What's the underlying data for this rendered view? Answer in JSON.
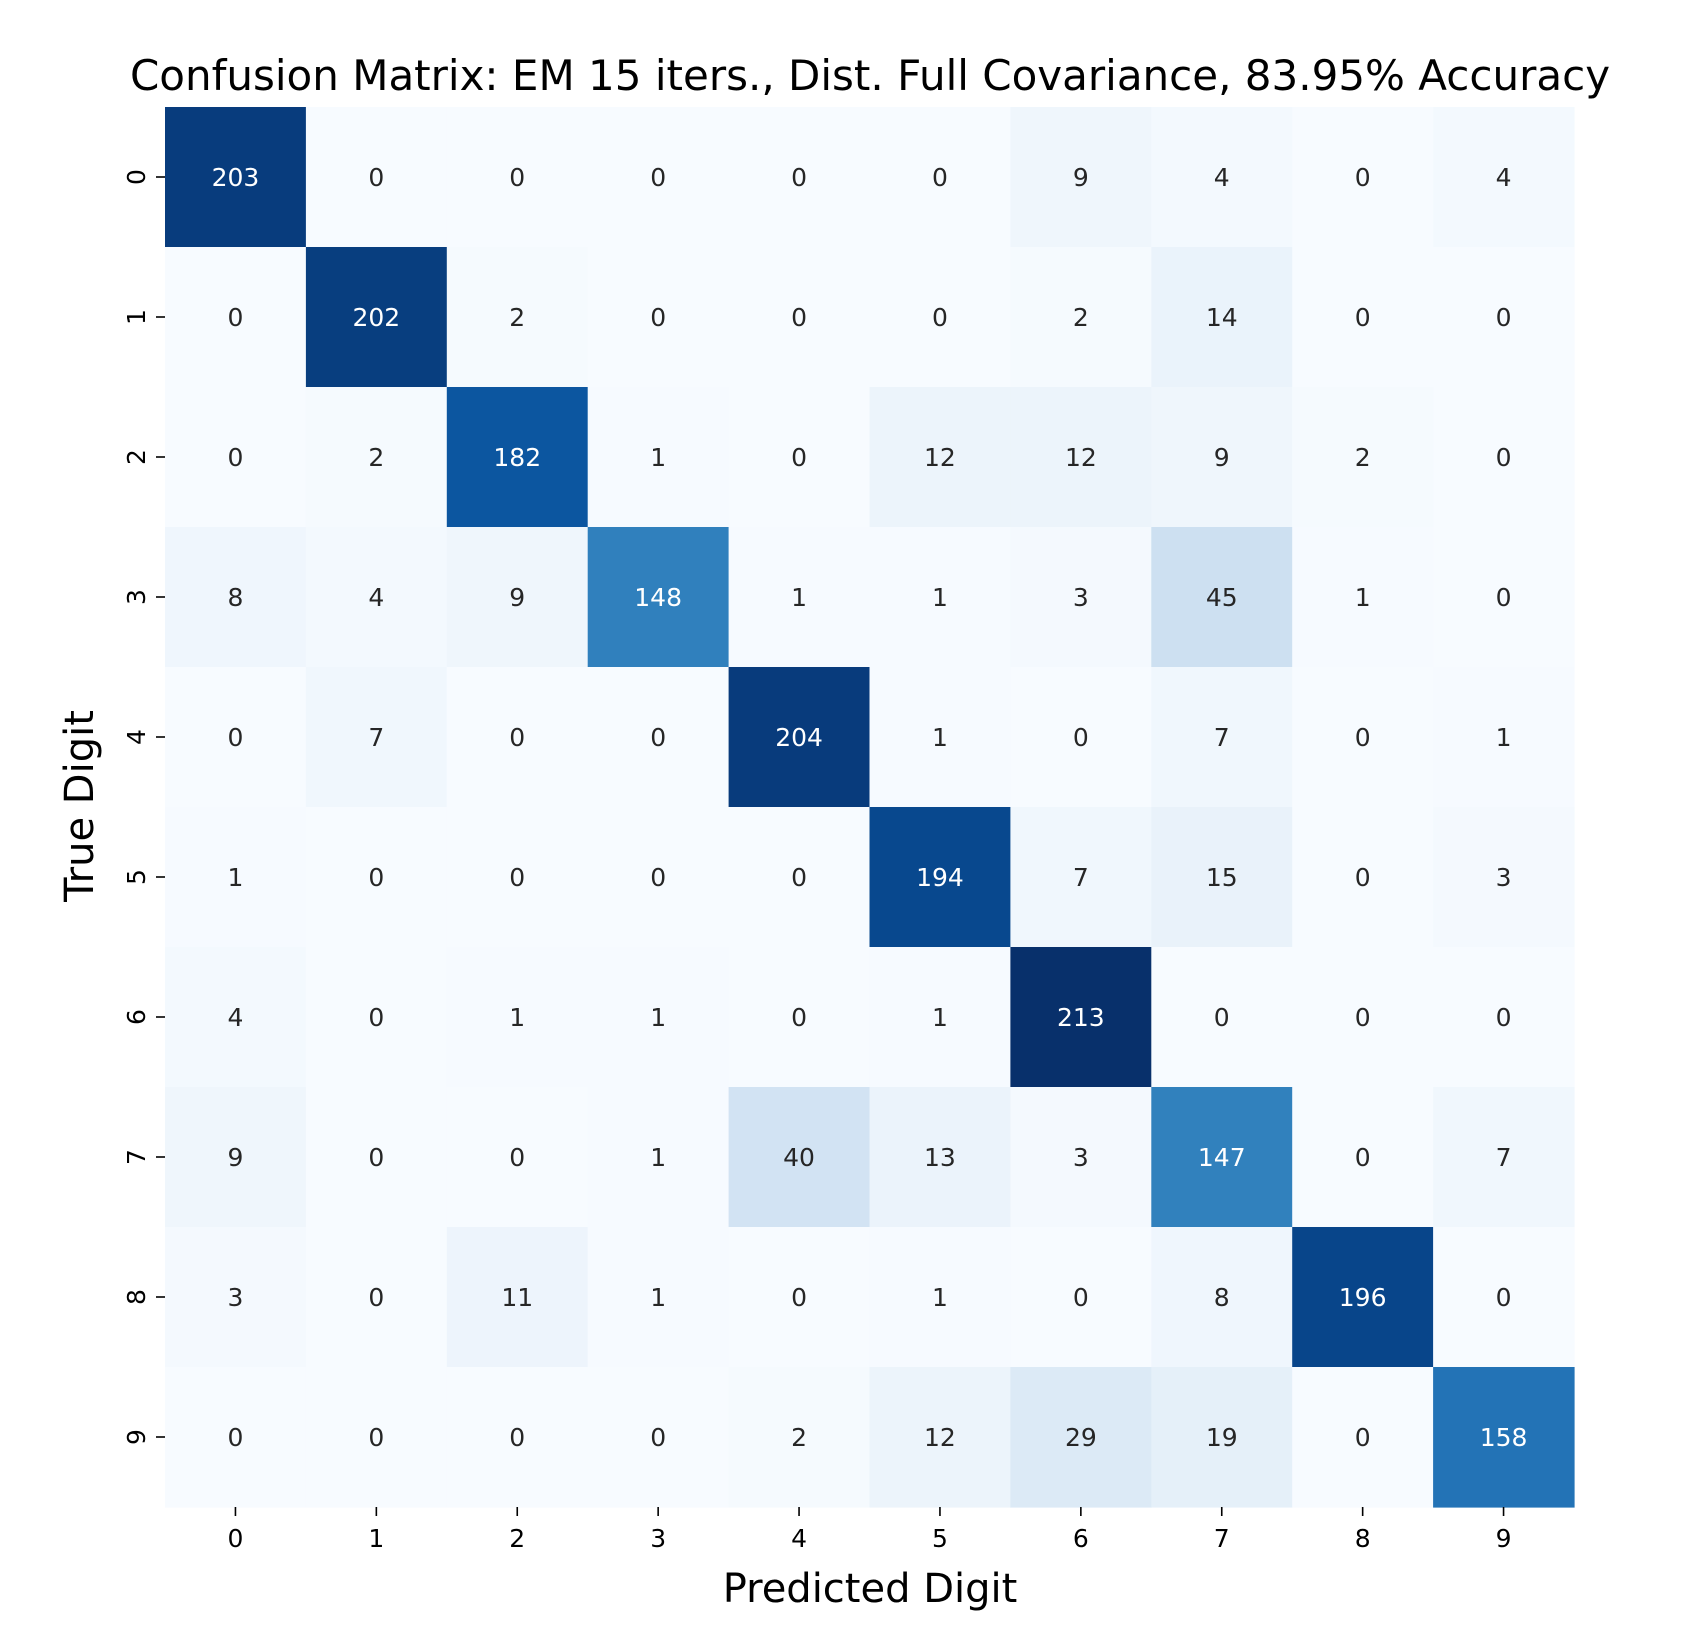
{
  "chart_data": {
    "type": "heatmap",
    "title": "Confusion Matrix: EM 15 iters., Dist. Full Covariance, 83.95% Accuracy",
    "xlabel": "Predicted Digit",
    "ylabel": "True Digit",
    "x_categories": [
      "0",
      "1",
      "2",
      "3",
      "4",
      "5",
      "6",
      "7",
      "8",
      "9"
    ],
    "y_categories": [
      "0",
      "1",
      "2",
      "3",
      "4",
      "5",
      "6",
      "7",
      "8",
      "9"
    ],
    "values": [
      [
        203,
        0,
        0,
        0,
        0,
        0,
        9,
        4,
        0,
        4
      ],
      [
        0,
        202,
        2,
        0,
        0,
        0,
        2,
        14,
        0,
        0
      ],
      [
        0,
        2,
        182,
        1,
        0,
        12,
        12,
        9,
        2,
        0
      ],
      [
        8,
        4,
        9,
        148,
        1,
        1,
        3,
        45,
        1,
        0
      ],
      [
        0,
        7,
        0,
        0,
        204,
        1,
        0,
        7,
        0,
        1
      ],
      [
        1,
        0,
        0,
        0,
        0,
        194,
        7,
        15,
        0,
        3
      ],
      [
        4,
        0,
        1,
        1,
        0,
        1,
        213,
        0,
        0,
        0
      ],
      [
        9,
        0,
        0,
        1,
        40,
        13,
        3,
        147,
        0,
        7
      ],
      [
        3,
        0,
        11,
        1,
        0,
        1,
        0,
        8,
        196,
        0
      ],
      [
        0,
        0,
        0,
        0,
        2,
        12,
        29,
        19,
        0,
        158
      ]
    ],
    "value_range": [
      0,
      213
    ],
    "colormap": "Blues",
    "colorbar": false,
    "grid": false
  }
}
